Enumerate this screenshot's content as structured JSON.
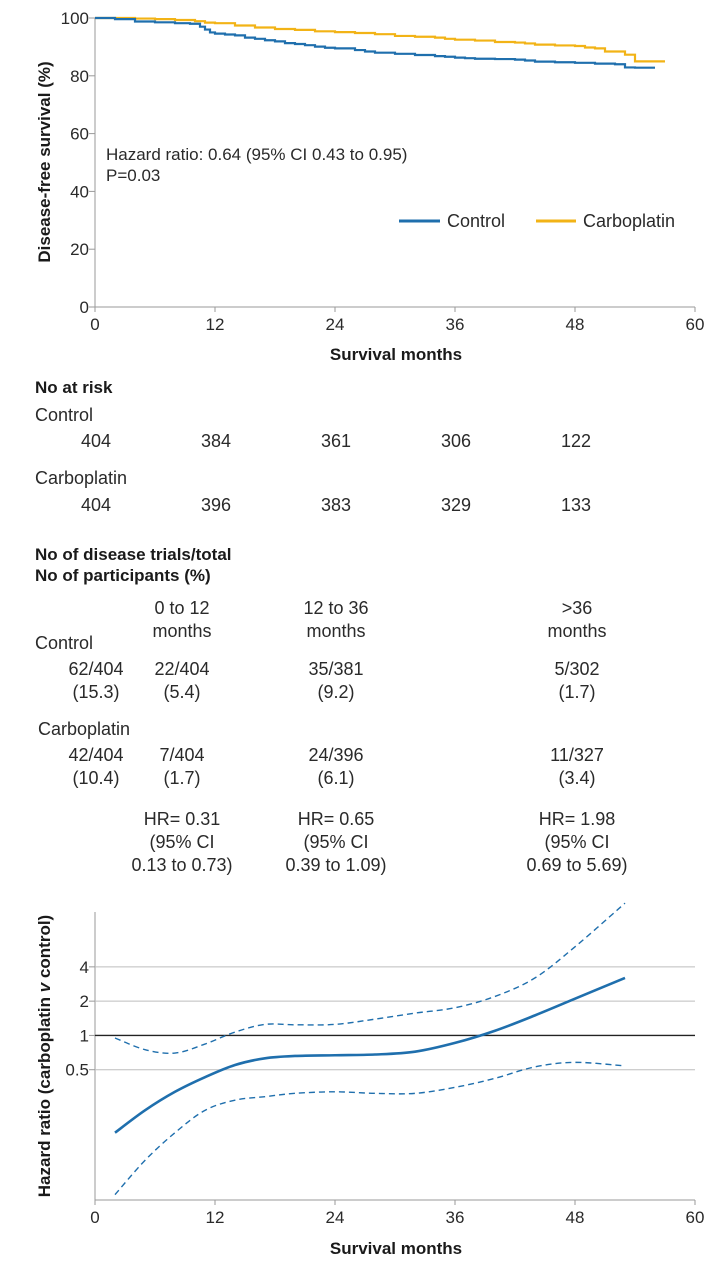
{
  "km_chart": {
    "type": "line",
    "ylabel": "Disease-free survival (%)",
    "xlabel": "Survival months",
    "xlim": [
      0,
      60
    ],
    "ylim": [
      0,
      100
    ],
    "x_ticks": [
      "0",
      "12",
      "24",
      "36",
      "48",
      "60"
    ],
    "y_ticks": [
      "0",
      "20",
      "40",
      "60",
      "80",
      "100"
    ],
    "annotation_line1": "Hazard ratio: 0.64 (95% CI 0.43 to 0.95)",
    "annotation_line2": "P=0.03",
    "colors": {
      "control": "#1f6fad",
      "carboplatin": "#f2b316"
    },
    "series": [
      {
        "name": "Control",
        "color": "#1f6fad",
        "x": [
          0,
          1,
          2,
          4,
          6,
          8,
          9.5,
          10.5,
          11,
          11.5,
          12,
          13,
          14,
          15,
          16,
          17,
          18,
          19,
          20,
          21,
          22,
          23,
          24,
          26,
          27,
          28,
          30,
          32,
          34,
          35,
          36,
          37,
          38,
          40,
          42,
          43,
          44,
          46,
          48,
          50,
          52,
          53,
          54,
          56
        ],
        "values": [
          100,
          100,
          99.6,
          98.8,
          98.5,
          98.2,
          98.0,
          97.0,
          96.0,
          95.0,
          94.6,
          94.3,
          94.0,
          93.2,
          92.8,
          92.3,
          91.9,
          91.3,
          91.0,
          90.6,
          90.1,
          89.7,
          89.5,
          88.9,
          88.4,
          88.0,
          87.6,
          87.2,
          86.8,
          86.6,
          86.3,
          86.1,
          85.9,
          85.8,
          85.6,
          85.3,
          84.9,
          84.7,
          84.5,
          84.2,
          84.0,
          82.9,
          82.8,
          82.8
        ]
      },
      {
        "name": "Carboplatin",
        "color": "#f2b316",
        "x": [
          0,
          2,
          4,
          6,
          8,
          10,
          11,
          12,
          14,
          16,
          18,
          20,
          22,
          24,
          26,
          28,
          30,
          32,
          34,
          35,
          36,
          38,
          40,
          42,
          43,
          44,
          46,
          48,
          49,
          50,
          51,
          52,
          53,
          54,
          57
        ],
        "values": [
          100,
          100,
          99.8,
          99.6,
          99.3,
          98.9,
          98.4,
          98.2,
          97.4,
          96.7,
          96.2,
          95.9,
          95.4,
          95.1,
          94.8,
          94.4,
          93.8,
          93.5,
          93.2,
          92.8,
          92.5,
          92.2,
          91.7,
          91.5,
          91.2,
          90.8,
          90.5,
          90.3,
          89.8,
          89.5,
          88.4,
          88.4,
          87.3,
          85.0,
          85.0
        ]
      }
    ]
  },
  "risk_table": {
    "title": "No at risk",
    "rows": [
      {
        "label": "Control",
        "values": [
          "404",
          "384",
          "361",
          "306",
          "122"
        ]
      },
      {
        "label": "Carboplatin",
        "values": [
          "404",
          "396",
          "383",
          "329",
          "133"
        ]
      }
    ]
  },
  "events_table": {
    "title_line1": "No of disease trials/total",
    "title_line2": "No of participants (%)",
    "periods": [
      {
        "line1": "0 to 12",
        "line2": "months"
      },
      {
        "line1": "12 to 36",
        "line2": "months"
      },
      {
        "line1": ">36",
        "line2": "months"
      }
    ],
    "rows": [
      {
        "label": "Control",
        "total": {
          "count": "62/404",
          "pct": "(15.3)"
        },
        "cells": [
          {
            "count": "22/404",
            "pct": "(5.4)"
          },
          {
            "count": "35/381",
            "pct": "(9.2)"
          },
          {
            "count": "5/302",
            "pct": "(1.7)"
          }
        ]
      },
      {
        "label": "Carboplatin",
        "total": {
          "count": "42/404",
          "pct": "(10.4)"
        },
        "cells": [
          {
            "count": "7/404",
            "pct": "(1.7)"
          },
          {
            "count": "24/396",
            "pct": "(6.1)"
          },
          {
            "count": "11/327",
            "pct": "(3.4)"
          }
        ]
      }
    ],
    "hr": [
      {
        "line1": "HR= 0.31",
        "line2": "(95% CI",
        "line3": "0.13 to 0.73)"
      },
      {
        "line1": "HR= 0.65",
        "line2": "(95% CI",
        "line3": "0.39 to 1.09)"
      },
      {
        "line1": "HR= 1.98",
        "line2": "(95% CI",
        "line3": "0.69 to 5.69)"
      }
    ]
  },
  "hr_chart": {
    "type": "line",
    "ylabel": "Hazard ratio (carboplatin v control)",
    "ylabel_pre": "Hazard ratio (carboplatin ",
    "ylabel_italic": "v",
    "ylabel_post": " control)",
    "xlabel": "Survival months",
    "xlim": [
      0,
      60
    ],
    "ylim_log2": [
      -4.8,
      3.6
    ],
    "x_ticks": [
      "0",
      "12",
      "24",
      "36",
      "48",
      "60"
    ],
    "y_ticks": [
      {
        "label": "4",
        "value": 4
      },
      {
        "label": "2",
        "value": 2
      },
      {
        "label": "1",
        "value": 1
      },
      {
        "label": "0.5",
        "value": 0.5
      }
    ],
    "reference_value": 1,
    "color": "#1f6fad",
    "hr_estimate": {
      "x": [
        2,
        5,
        8,
        11,
        14,
        17,
        20,
        24,
        28,
        32,
        36,
        40,
        44,
        48,
        53
      ],
      "values": [
        0.14,
        0.22,
        0.32,
        0.43,
        0.55,
        0.63,
        0.66,
        0.67,
        0.68,
        0.72,
        0.86,
        1.1,
        1.5,
        2.1,
        3.2
      ]
    },
    "ci_upper": {
      "x": [
        2,
        5,
        8,
        11,
        14,
        17,
        20,
        24,
        28,
        32,
        36,
        40,
        44,
        48,
        53
      ],
      "values": [
        0.95,
        0.75,
        0.7,
        0.84,
        1.07,
        1.25,
        1.24,
        1.25,
        1.39,
        1.57,
        1.75,
        2.2,
        3.2,
        6.0,
        14.5
      ]
    },
    "ci_lower": {
      "x": [
        2,
        5,
        8,
        11,
        14,
        17,
        20,
        24,
        28,
        32,
        36,
        40,
        44,
        48,
        53
      ],
      "values": [
        0.04,
        0.08,
        0.14,
        0.22,
        0.27,
        0.29,
        0.31,
        0.32,
        0.31,
        0.31,
        0.35,
        0.42,
        0.53,
        0.58,
        0.54
      ]
    }
  }
}
